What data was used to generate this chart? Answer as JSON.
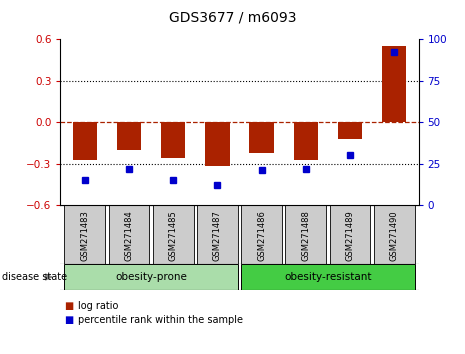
{
  "title": "GDS3677 / m6093",
  "samples": [
    "GSM271483",
    "GSM271484",
    "GSM271485",
    "GSM271487",
    "GSM271486",
    "GSM271488",
    "GSM271489",
    "GSM271490"
  ],
  "log_ratio": [
    -0.27,
    -0.2,
    -0.26,
    -0.32,
    -0.22,
    -0.27,
    -0.12,
    0.55
  ],
  "percentile_rank": [
    15,
    22,
    15,
    12,
    21,
    22,
    30,
    92
  ],
  "groups": [
    {
      "label": "obesity-prone",
      "indices": [
        0,
        1,
        2,
        3
      ],
      "color": "#aaddaa"
    },
    {
      "label": "obesity-resistant",
      "indices": [
        4,
        5,
        6,
        7
      ],
      "color": "#44cc44"
    }
  ],
  "bar_color": "#aa2200",
  "dot_color": "#0000cc",
  "ylim_left": [
    -0.6,
    0.6
  ],
  "ylim_right": [
    0,
    100
  ],
  "yticks_left": [
    -0.6,
    -0.3,
    0.0,
    0.3,
    0.6
  ],
  "yticks_right": [
    0,
    25,
    50,
    75,
    100
  ],
  "hlines_dotted": [
    -0.3,
    0.3
  ],
  "disease_state_label": "disease state",
  "legend_items": [
    {
      "label": "log ratio",
      "color": "#aa2200"
    },
    {
      "label": "percentile rank within the sample",
      "color": "#0000cc"
    }
  ],
  "tick_label_color_left": "#cc0000",
  "tick_label_color_right": "#0000cc",
  "xlabel_gray_bg": "#cccccc",
  "bar_width": 0.55
}
